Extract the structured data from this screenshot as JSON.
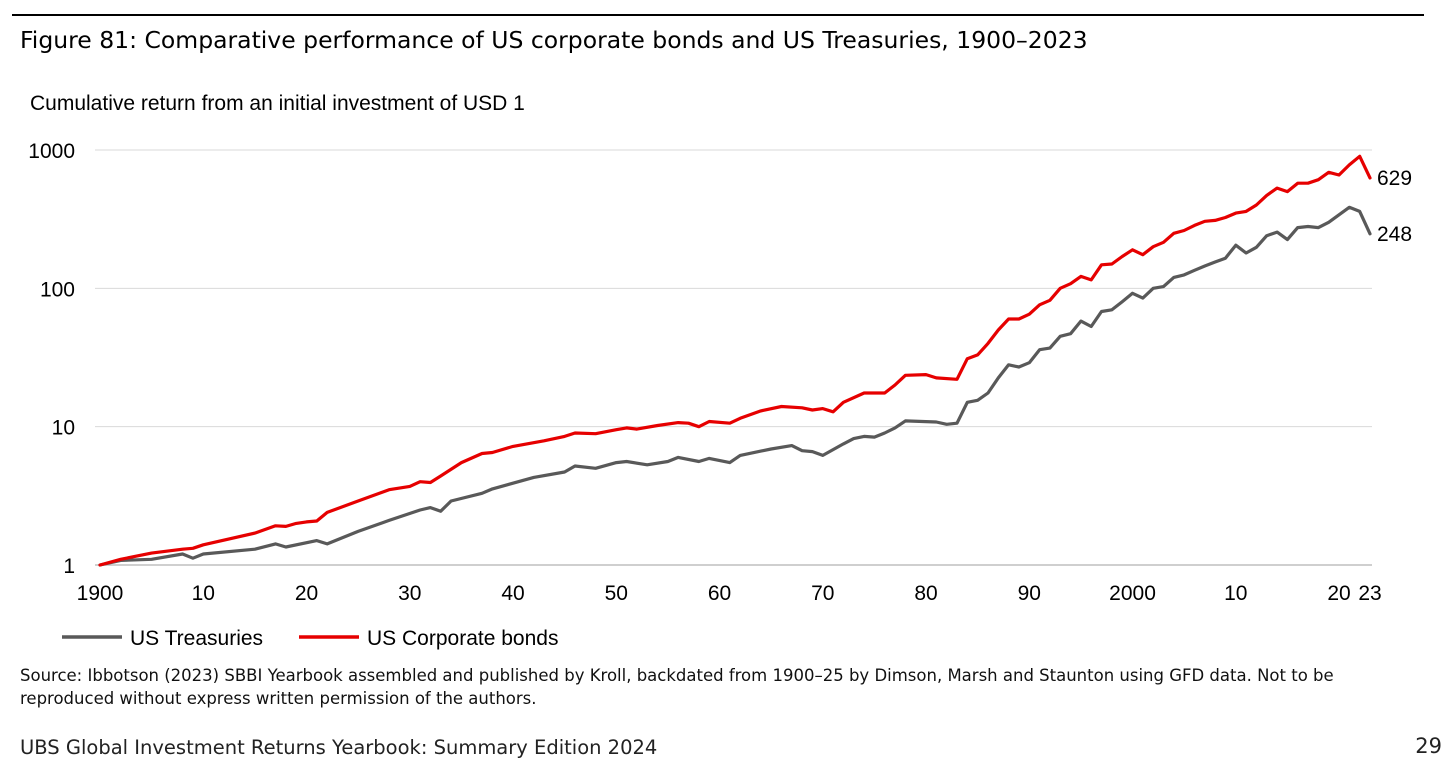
{
  "figure_title": "Figure 81: Comparative performance of US corporate bonds and US Treasuries, 1900–2023",
  "source_note": "Source: Ibbotson (2023) SBBI Yearbook assembled and published by Kroll, backdated from 1900–25 by Dimson, Marsh and Staunton using GFD data. Not to be reproduced without express written permission of the authors.",
  "footer": "UBS Global Investment Returns Yearbook: Summary Edition 2024",
  "page_number": "29",
  "chart_data": {
    "type": "line",
    "title": "",
    "ylabel": "Cumulative return from an initial investment of USD 1",
    "xlabel": "",
    "y_scale": "log",
    "ylim": [
      1,
      1000
    ],
    "xlim": [
      1900,
      2023
    ],
    "grid": "horizontal",
    "legend_position": "bottom-left",
    "y_ticks": [
      {
        "value": 1,
        "label": "1"
      },
      {
        "value": 10,
        "label": "10"
      },
      {
        "value": 100,
        "label": "100"
      },
      {
        "value": 1000,
        "label": "1000"
      }
    ],
    "x_ticks": [
      {
        "value": 1900,
        "label": "1900"
      },
      {
        "value": 1910,
        "label": "10"
      },
      {
        "value": 1920,
        "label": "20"
      },
      {
        "value": 1930,
        "label": "30"
      },
      {
        "value": 1940,
        "label": "40"
      },
      {
        "value": 1950,
        "label": "50"
      },
      {
        "value": 1960,
        "label": "60"
      },
      {
        "value": 1970,
        "label": "70"
      },
      {
        "value": 1980,
        "label": "80"
      },
      {
        "value": 1990,
        "label": "90"
      },
      {
        "value": 2000,
        "label": "2000"
      },
      {
        "value": 2010,
        "label": "10"
      },
      {
        "value": 2020,
        "label": "20"
      },
      {
        "value": 2023,
        "label": "23"
      }
    ],
    "series": [
      {
        "name": "US Treasuries",
        "color": "#595959",
        "end_label": "248",
        "points": [
          [
            1900,
            1
          ],
          [
            1902,
            1.08
          ],
          [
            1905,
            1.1
          ],
          [
            1908,
            1.2
          ],
          [
            1909,
            1.12
          ],
          [
            1910,
            1.2
          ],
          [
            1915,
            1.3
          ],
          [
            1917,
            1.42
          ],
          [
            1918,
            1.35
          ],
          [
            1921,
            1.5
          ],
          [
            1922,
            1.42
          ],
          [
            1925,
            1.75
          ],
          [
            1928,
            2.1
          ],
          [
            1931,
            2.5
          ],
          [
            1932,
            2.6
          ],
          [
            1933,
            2.45
          ],
          [
            1934,
            2.9
          ],
          [
            1937,
            3.3
          ],
          [
            1938,
            3.55
          ],
          [
            1942,
            4.3
          ],
          [
            1945,
            4.7
          ],
          [
            1946,
            5.2
          ],
          [
            1948,
            5.0
          ],
          [
            1950,
            5.5
          ],
          [
            1951,
            5.6
          ],
          [
            1953,
            5.3
          ],
          [
            1955,
            5.6
          ],
          [
            1956,
            6.0
          ],
          [
            1958,
            5.6
          ],
          [
            1959,
            5.9
          ],
          [
            1961,
            5.5
          ],
          [
            1962,
            6.2
          ],
          [
            1965,
            6.9
          ],
          [
            1967,
            7.3
          ],
          [
            1968,
            6.7
          ],
          [
            1969,
            6.6
          ],
          [
            1970,
            6.2
          ],
          [
            1972,
            7.5
          ],
          [
            1973,
            8.2
          ],
          [
            1974,
            8.5
          ],
          [
            1975,
            8.4
          ],
          [
            1976,
            9.0
          ],
          [
            1977,
            9.8
          ],
          [
            1978,
            11.0
          ],
          [
            1981,
            10.8
          ],
          [
            1982,
            10.4
          ],
          [
            1983,
            10.6
          ],
          [
            1984,
            15.0
          ],
          [
            1985,
            15.5
          ],
          [
            1986,
            17.5
          ],
          [
            1987,
            22.5
          ],
          [
            1988,
            28.0
          ],
          [
            1989,
            27.0
          ],
          [
            1990,
            29.0
          ],
          [
            1991,
            36.0
          ],
          [
            1992,
            37.0
          ],
          [
            1993,
            45.0
          ],
          [
            1994,
            47.0
          ],
          [
            1995,
            58.0
          ],
          [
            1996,
            53.0
          ],
          [
            1997,
            68.0
          ],
          [
            1998,
            70.0
          ],
          [
            1999,
            80.0
          ],
          [
            2000,
            92.0
          ],
          [
            2001,
            85.0
          ],
          [
            2002,
            100.0
          ],
          [
            2003,
            103.0
          ],
          [
            2004,
            120.0
          ],
          [
            2005,
            125.0
          ],
          [
            2006,
            135.0
          ],
          [
            2007,
            145.0
          ],
          [
            2008,
            155.0
          ],
          [
            2009,
            165.0
          ],
          [
            2010,
            205.0
          ],
          [
            2011,
            180.0
          ],
          [
            2012,
            198.0
          ],
          [
            2013,
            240.0
          ],
          [
            2014,
            255.0
          ],
          [
            2015,
            225.0
          ],
          [
            2016,
            275.0
          ],
          [
            2017,
            280.0
          ],
          [
            2018,
            275.0
          ],
          [
            2019,
            300.0
          ],
          [
            2020,
            340.0
          ],
          [
            2021,
            385.0
          ],
          [
            2022,
            360.0
          ],
          [
            2023,
            248.0
          ]
        ]
      },
      {
        "name": "US Corporate bonds",
        "color": "#e60000",
        "end_label": "629",
        "points": [
          [
            1900,
            1
          ],
          [
            1902,
            1.1
          ],
          [
            1905,
            1.22
          ],
          [
            1908,
            1.3
          ],
          [
            1909,
            1.32
          ],
          [
            1910,
            1.4
          ],
          [
            1915,
            1.7
          ],
          [
            1917,
            1.92
          ],
          [
            1918,
            1.9
          ],
          [
            1919,
            2.0
          ],
          [
            1920,
            2.05
          ],
          [
            1921,
            2.08
          ],
          [
            1922,
            2.4
          ],
          [
            1925,
            2.9
          ],
          [
            1928,
            3.5
          ],
          [
            1930,
            3.7
          ],
          [
            1931,
            4.0
          ],
          [
            1932,
            3.95
          ],
          [
            1933,
            4.4
          ],
          [
            1935,
            5.5
          ],
          [
            1937,
            6.4
          ],
          [
            1938,
            6.5
          ],
          [
            1940,
            7.2
          ],
          [
            1943,
            7.9
          ],
          [
            1945,
            8.5
          ],
          [
            1946,
            9.0
          ],
          [
            1948,
            8.9
          ],
          [
            1950,
            9.5
          ],
          [
            1951,
            9.8
          ],
          [
            1952,
            9.6
          ],
          [
            1954,
            10.2
          ],
          [
            1956,
            10.7
          ],
          [
            1957,
            10.6
          ],
          [
            1958,
            10.0
          ],
          [
            1959,
            10.9
          ],
          [
            1961,
            10.6
          ],
          [
            1962,
            11.5
          ],
          [
            1964,
            13.0
          ],
          [
            1966,
            14.0
          ],
          [
            1968,
            13.7
          ],
          [
            1969,
            13.2
          ],
          [
            1970,
            13.5
          ],
          [
            1971,
            12.8
          ],
          [
            1972,
            15.0
          ],
          [
            1974,
            17.5
          ],
          [
            1976,
            17.5
          ],
          [
            1977,
            20.0
          ],
          [
            1978,
            23.5
          ],
          [
            1980,
            23.8
          ],
          [
            1981,
            22.5
          ],
          [
            1983,
            22.0
          ],
          [
            1984,
            31.0
          ],
          [
            1985,
            33.0
          ],
          [
            1986,
            40.0
          ],
          [
            1987,
            50.0
          ],
          [
            1988,
            60.0
          ],
          [
            1989,
            60.0
          ],
          [
            1990,
            65.0
          ],
          [
            1991,
            76.0
          ],
          [
            1992,
            82.0
          ],
          [
            1993,
            100.0
          ],
          [
            1994,
            108.0
          ],
          [
            1995,
            122.0
          ],
          [
            1996,
            115.0
          ],
          [
            1997,
            148.0
          ],
          [
            1998,
            150.0
          ],
          [
            1999,
            170.0
          ],
          [
            2000,
            190.0
          ],
          [
            2001,
            175.0
          ],
          [
            2002,
            200.0
          ],
          [
            2003,
            215.0
          ],
          [
            2004,
            250.0
          ],
          [
            2005,
            262.0
          ],
          [
            2006,
            285.0
          ],
          [
            2007,
            305.0
          ],
          [
            2008,
            310.0
          ],
          [
            2009,
            325.0
          ],
          [
            2010,
            350.0
          ],
          [
            2011,
            360.0
          ],
          [
            2012,
            400.0
          ],
          [
            2013,
            470.0
          ],
          [
            2014,
            530.0
          ],
          [
            2015,
            500.0
          ],
          [
            2016,
            575.0
          ],
          [
            2017,
            575.0
          ],
          [
            2018,
            610.0
          ],
          [
            2019,
            690.0
          ],
          [
            2020,
            660.0
          ],
          [
            2021,
            780.0
          ],
          [
            2022,
            900.0
          ],
          [
            2023,
            629.0
          ]
        ]
      }
    ]
  }
}
